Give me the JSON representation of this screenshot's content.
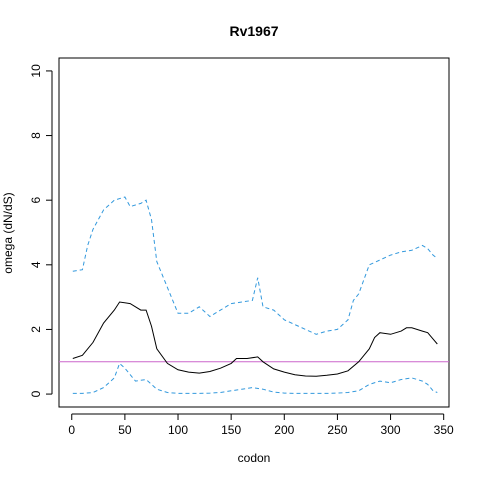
{
  "chart_data": {
    "type": "line",
    "title": "Rv1967",
    "xlabel": "codon",
    "ylabel": "omega (dN/dS)",
    "xlim": [
      -12,
      355
    ],
    "ylim": [
      -0.4,
      10.4
    ],
    "x_ticks": [
      0,
      50,
      100,
      150,
      200,
      250,
      300,
      350
    ],
    "y_ticks": [
      0,
      2,
      4,
      6,
      8,
      10
    ],
    "reference_line": {
      "y": 1,
      "color": "#cc66cc"
    },
    "series": [
      {
        "style": "solid",
        "color": "#000000",
        "x": [
          1,
          10,
          20,
          30,
          40,
          45,
          55,
          65,
          70,
          75,
          80,
          90,
          100,
          110,
          120,
          130,
          140,
          150,
          155,
          165,
          175,
          180,
          190,
          200,
          210,
          220,
          230,
          240,
          250,
          260,
          270,
          280,
          285,
          290,
          300,
          310,
          315,
          320,
          330,
          335,
          340,
          344
        ],
        "y": [
          1.1,
          1.2,
          1.6,
          2.2,
          2.6,
          2.85,
          2.8,
          2.6,
          2.6,
          2.1,
          1.4,
          0.95,
          0.75,
          0.68,
          0.65,
          0.7,
          0.8,
          0.95,
          1.1,
          1.1,
          1.15,
          1.0,
          0.78,
          0.68,
          0.6,
          0.56,
          0.55,
          0.58,
          0.62,
          0.72,
          1.0,
          1.4,
          1.75,
          1.9,
          1.85,
          1.95,
          2.05,
          2.05,
          1.95,
          1.9,
          1.7,
          1.55
        ]
      },
      {
        "style": "dashed",
        "color": "#3399dd",
        "x": [
          1,
          10,
          15,
          20,
          30,
          40,
          50,
          55,
          65,
          70,
          75,
          80,
          90,
          100,
          110,
          120,
          130,
          140,
          150,
          160,
          170,
          175,
          180,
          190,
          200,
          210,
          220,
          230,
          240,
          250,
          260,
          265,
          270,
          280,
          290,
          300,
          310,
          320,
          330,
          335,
          340,
          344
        ],
        "y": [
          3.8,
          3.85,
          4.6,
          5.1,
          5.7,
          6.0,
          6.1,
          5.8,
          5.9,
          6.0,
          5.4,
          4.1,
          3.3,
          2.5,
          2.5,
          2.7,
          2.4,
          2.6,
          2.8,
          2.85,
          2.9,
          3.6,
          2.7,
          2.6,
          2.3,
          2.15,
          2.0,
          1.85,
          1.95,
          2.0,
          2.3,
          2.9,
          3.1,
          4.0,
          4.15,
          4.3,
          4.4,
          4.45,
          4.6,
          4.5,
          4.3,
          4.2
        ]
      },
      {
        "style": "dashed",
        "color": "#3399dd",
        "x": [
          1,
          10,
          20,
          30,
          40,
          45,
          50,
          60,
          70,
          80,
          90,
          100,
          110,
          120,
          130,
          140,
          150,
          160,
          170,
          180,
          190,
          200,
          210,
          220,
          230,
          240,
          250,
          260,
          270,
          280,
          290,
          300,
          310,
          320,
          330,
          335,
          340,
          344
        ],
        "y": [
          0.02,
          0.02,
          0.05,
          0.2,
          0.5,
          0.95,
          0.8,
          0.4,
          0.45,
          0.15,
          0.05,
          0.02,
          0.02,
          0.02,
          0.03,
          0.05,
          0.1,
          0.15,
          0.2,
          0.15,
          0.06,
          0.03,
          0.02,
          0.02,
          0.02,
          0.02,
          0.03,
          0.05,
          0.1,
          0.3,
          0.4,
          0.35,
          0.45,
          0.5,
          0.4,
          0.3,
          0.1,
          0.05
        ]
      }
    ]
  }
}
